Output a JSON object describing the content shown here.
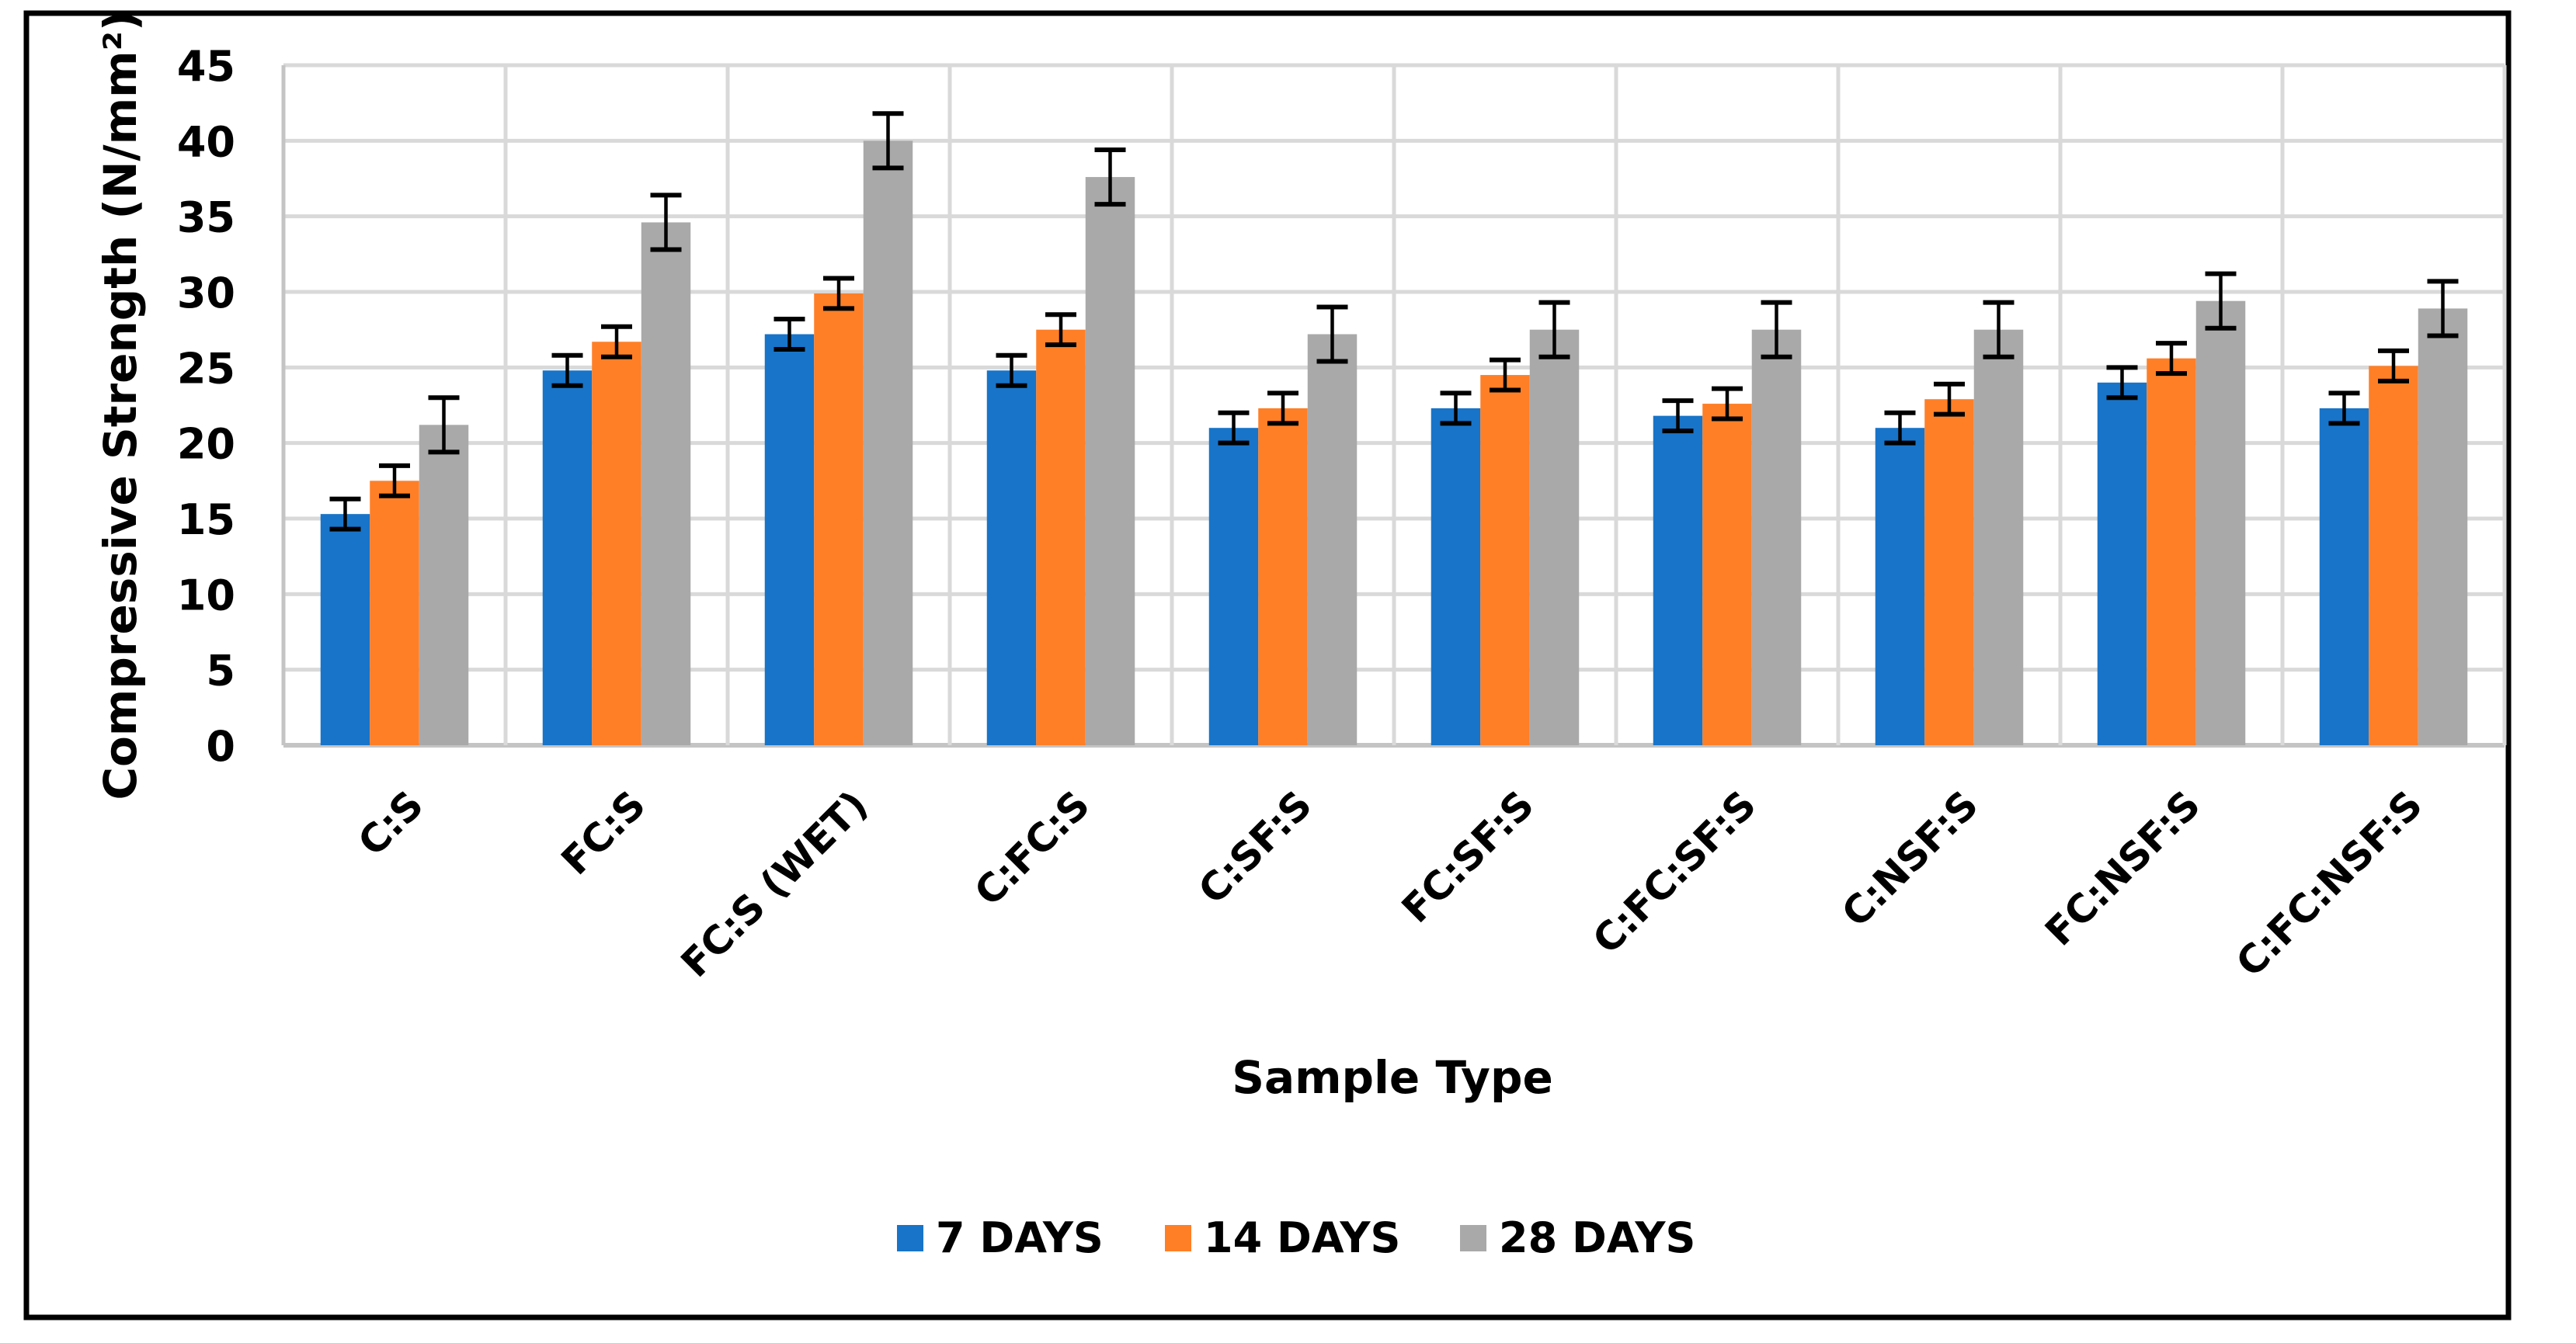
{
  "chart_data": {
    "type": "bar",
    "title": "",
    "xlabel": "Sample Type",
    "ylabel": "Compressive Strength (N/mm²)",
    "ylim": [
      0,
      45
    ],
    "yticks": [
      "0",
      "5",
      "10",
      "15",
      "20",
      "25",
      "30",
      "35",
      "40",
      "45"
    ],
    "grid": true,
    "legend_position": "bottom",
    "categories": [
      "C:S",
      "FC:S",
      "FC:S (WET)",
      "C:FC:S",
      "C:SF:S",
      "FC:SF:S",
      "C:FC:SF:S",
      "C:NSF:S",
      "FC:NSF:S",
      "C:FC:NSF:S"
    ],
    "series": [
      {
        "name": "7 DAYS",
        "color": "#1874C8",
        "values": [
          15.3,
          24.8,
          27.2,
          24.8,
          21.0,
          22.3,
          21.8,
          21.0,
          24.0,
          22.3
        ],
        "error": [
          1.0,
          1.0,
          1.0,
          1.0,
          1.0,
          1.0,
          1.0,
          1.0,
          1.0,
          1.0
        ]
      },
      {
        "name": "14 DAYS",
        "color": "#FF7F27",
        "values": [
          17.5,
          26.7,
          29.9,
          27.5,
          22.3,
          24.5,
          22.6,
          22.9,
          25.6,
          25.1
        ],
        "error": [
          1.0,
          1.0,
          1.0,
          1.0,
          1.0,
          1.0,
          1.0,
          1.0,
          1.0,
          1.0
        ]
      },
      {
        "name": "28 DAYS",
        "color": "#A9A9A9",
        "values": [
          21.2,
          34.6,
          40.0,
          37.6,
          27.2,
          27.5,
          27.5,
          27.5,
          29.4,
          28.9
        ],
        "error": [
          1.8,
          1.8,
          1.8,
          1.8,
          1.8,
          1.8,
          1.8,
          1.8,
          1.8,
          1.8
        ]
      }
    ]
  }
}
